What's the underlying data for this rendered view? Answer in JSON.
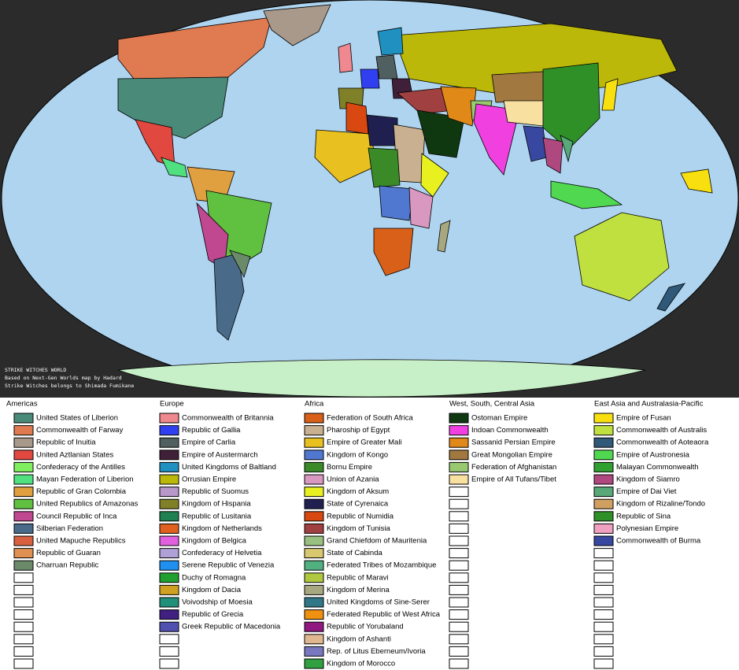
{
  "map": {
    "caption": [
      "STRIKE WITCHES WORLD",
      "Based on Next-Gen Worlds map by Hadard",
      "Strike Witches belongs to Shimada Fumikane"
    ]
  },
  "legend": [
    {
      "title": "Americas",
      "entries": [
        {
          "label": "United States of Liberion",
          "color": "#4a8a78"
        },
        {
          "label": "Commonwealth of Farway",
          "color": "#e07a50"
        },
        {
          "label": "Republic of Inuitia",
          "color": "#a8998a"
        },
        {
          "label": "United Aztlanian States",
          "color": "#e04840"
        },
        {
          "label": "Confederacy of the Antilles",
          "color": "#80f060"
        },
        {
          "label": "Mayan Federation of Liberion",
          "color": "#50e080"
        },
        {
          "label": "Republic of Gran Colombia",
          "color": "#e0a040"
        },
        {
          "label": "United Republics of Amazonas",
          "color": "#60c040"
        },
        {
          "label": "Council Republic of Inca",
          "color": "#c04890"
        },
        {
          "label": "Silberian Federation",
          "color": "#4a6a8a"
        },
        {
          "label": "United Mapuche Republics",
          "color": "#d86040"
        },
        {
          "label": "Republic of Guaran",
          "color": "#e09050"
        },
        {
          "label": "Charruan Republic",
          "color": "#6a8a6a"
        }
      ]
    },
    {
      "title": "Europe",
      "entries": [
        {
          "label": "Commonwealth of Britannia",
          "color": "#f08890"
        },
        {
          "label": "Republic of Gallia",
          "color": "#3040f0"
        },
        {
          "label": "Empire of Carlia",
          "color": "#506060"
        },
        {
          "label": "Empire of Austermarch",
          "color": "#402038"
        },
        {
          "label": "United Kingdoms of Baltland",
          "color": "#2090c0"
        },
        {
          "label": "Orrusian Empire",
          "color": "#bcb80a"
        },
        {
          "label": "Republic of Suomus",
          "color": "#b898c8"
        },
        {
          "label": "Kingdom of Hispania",
          "color": "#808028"
        },
        {
          "label": "Republic of Lusitania",
          "color": "#208050"
        },
        {
          "label": "Kingdom of Netherlands",
          "color": "#e06020"
        },
        {
          "label": "Kingdom of Belgica",
          "color": "#e060e0"
        },
        {
          "label": "Confederacy of Helvetia",
          "color": "#b0a0d8"
        },
        {
          "label": "Serene Republic of Venezia",
          "color": "#2090f0"
        },
        {
          "label": "Duchy of Romagna",
          "color": "#20a030"
        },
        {
          "label": "Kingdom of Dacia",
          "color": "#d0a020"
        },
        {
          "label": "Voivodship of Moesia",
          "color": "#20907a"
        },
        {
          "label": "Republic of Grecia",
          "color": "#402080"
        },
        {
          "label": "Greek Republic of Macedonia",
          "color": "#5050b0"
        }
      ]
    },
    {
      "title": "Africa",
      "entries": [
        {
          "label": "Federation of South Africa",
          "color": "#d86018"
        },
        {
          "label": "Pharoship of Egypt",
          "color": "#c8b090"
        },
        {
          "label": "Empire of Greater Mali",
          "color": "#e8c020"
        },
        {
          "label": "Kingdom of Kongo",
          "color": "#5078d0"
        },
        {
          "label": "Bornu Empire",
          "color": "#3a8a28"
        },
        {
          "label": "Union of Azania",
          "color": "#d898c0"
        },
        {
          "label": "Kingdom of Aksum",
          "color": "#e8f020"
        },
        {
          "label": "State of Cyrenaica",
          "color": "#202050"
        },
        {
          "label": "Republic of Numidia",
          "color": "#d84810"
        },
        {
          "label": "Kingdom of Tunisia",
          "color": "#a04040"
        },
        {
          "label": "Grand Chiefdom of Mauritenia",
          "color": "#98c080"
        },
        {
          "label": "State of Cabinda",
          "color": "#d8c870"
        },
        {
          "label": "Federated Tribes of Mozambique",
          "color": "#50b080"
        },
        {
          "label": "Republic of Maravi",
          "color": "#b0c840"
        },
        {
          "label": "Kingdom of Merina",
          "color": "#a8a880"
        },
        {
          "label": "United Kingdoms of Sine-Serer",
          "color": "#307888"
        },
        {
          "label": "Federated Republic of West Africa",
          "color": "#f09010"
        },
        {
          "label": "Republic of Yorubaland",
          "color": "#901880"
        },
        {
          "label": "Kingdom of Ashanti",
          "color": "#e0b890"
        },
        {
          "label": "Rep. of Litus Eberneum/Ivoria",
          "color": "#7878c0"
        },
        {
          "label": "Kingdom of Morocco",
          "color": "#30a040"
        }
      ]
    },
    {
      "title": "West, South, Central Asia",
      "entries": [
        {
          "label": "Ostoman Empire",
          "color": "#103810"
        },
        {
          "label": "Indoan Commonwealth",
          "color": "#f040e0"
        },
        {
          "label": "Sassanid Persian Empire",
          "color": "#e08818"
        },
        {
          "label": "Great Mongolian Empire",
          "color": "#a07840"
        },
        {
          "label": "Federation of Afghanistan",
          "color": "#98c870"
        },
        {
          "label": "Empire of All Tufans/Tibet",
          "color": "#f8e0a0"
        }
      ]
    },
    {
      "title": "East Asia and Australasia-Pacific",
      "entries": [
        {
          "label": "Empire of Fusan",
          "color": "#f8e010"
        },
        {
          "label": "Commonwealth of Australis",
          "color": "#c0e040"
        },
        {
          "label": "Commonwealth of Aoteaora",
          "color": "#305878"
        },
        {
          "label": "Empire of Austronesia",
          "color": "#50d850"
        },
        {
          "label": "Malayan Commonwealth",
          "color": "#30a030"
        },
        {
          "label": "Kingdom of Siamro",
          "color": "#b04880"
        },
        {
          "label": "Empire of Dai Viet",
          "color": "#58a878"
        },
        {
          "label": "Kingdom of Rizaline/Tondo",
          "color": "#d0a060"
        },
        {
          "label": "Republic of Sina",
          "color": "#309028"
        },
        {
          "label": "Polynesian Empire",
          "color": "#f0a0c0"
        },
        {
          "label": "Commonwealth of Burma",
          "color": "#3848a0"
        }
      ]
    }
  ]
}
